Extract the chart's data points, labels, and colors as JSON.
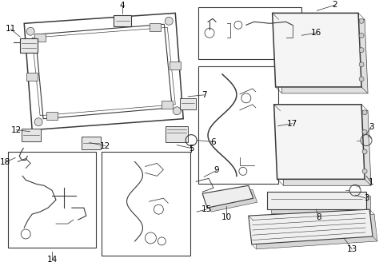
{
  "background_color": "#ffffff",
  "line_color": "#3a3a3a",
  "label_color": "#000000",
  "fig_width": 4.74,
  "fig_height": 3.48,
  "dpi": 100
}
